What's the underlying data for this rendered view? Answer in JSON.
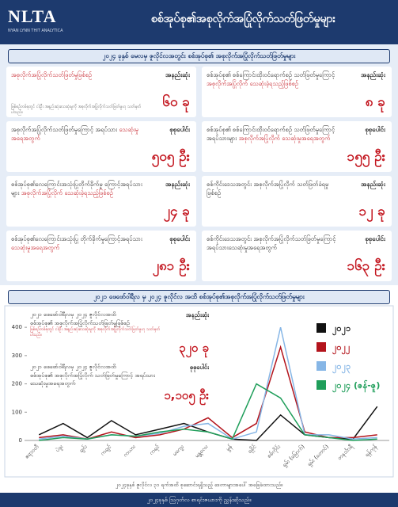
{
  "header": {
    "logo": "NLTA",
    "logo_sub": "NYAN LYNN THIT ANALYTICA",
    "title": "စစ်အုပ်စု၏အစုလိုက်အပြုံလိုက်သတ်ဖြတ်မှုများ"
  },
  "section1": {
    "title": "၂၀၂၄ ခုနှစ် မေလမှ ဇူလိုင်လအတွင်း စစ်အုပ်စု၏ အစုလိုက်အပြုံလိုက်သတ်ဖြတ်မှုများ",
    "cards": [
      {
        "label": "အနည်းဆုံး",
        "text": "",
        "highlight": "အစုလိုက်အပြုံလိုက်သတ်ဖြတ်မှုဖြစ်စဉ်",
        "value": "၆၀ ခု",
        "note": "ဖြစ်စဉ်တစ်ခုတွင် ငါးဦး အနည်းဆုံးသေဆုံးမှုကို အစုလိုက်အပြုံလိုက်သတ်ဖြတ်မှုဟု သတ်မှတ်ပါသည်။"
      },
      {
        "label": "အနည်းဆုံး",
        "text": "စစ်အုပ်စု၏ စစ်ကြောင်းထိုးဝင်ရောက်စဉ် သတ်ဖြတ်မှုကြောင့်",
        "highlight": "အစုလိုက်အပြုံလိုက် သေဆုံးခဲ့ရသည့်ဖြစ်စဉ်",
        "value": "၈ ခု"
      },
      {
        "label": "စုစုပေါင်း",
        "text": "အစုလိုက်အပြုံလိုက်သတ်ဖြတ်မှုကြောင့် အရပ်သား",
        "highlight": "သေဆုံးမှုအရေအတွက်",
        "value": "၅၀၅ ဦး"
      },
      {
        "label": "စုစုပေါင်း",
        "text": "စစ်အုပ်စု၏ စစ်ကြောင်းထိုးဝင်ရောက်စဉ် သတ်ဖြတ်မှုကြောင့် အရပ်သားများ",
        "highlight": "အစုလိုက်အပြုံလိုက် သေဆုံးမှုအရေအတွက်",
        "value": "၁၅၅ ဦး"
      },
      {
        "label": "အနည်းဆုံး",
        "text": "စစ်အုပ်စု၏လေကြောင်းအသုံးပြုတိုက်ခိုက်မှု ကြောင့်အရပ်သားများ",
        "highlight": "အစုလိုက်အပြုံလိုက် သေဆုံးခဲ့ရသည့်ဖြစ်စဉ်",
        "value": "၂၄ ခု"
      },
      {
        "label": "အနည်းဆုံး",
        "text": "စစ်ကိုင်းဒေသအတွင်း အစုလိုက်အပြုံလိုက် သတ်ဖြတ်ခံရမှုဖြစ်စဉ်",
        "highlight": "",
        "value": "၁၂ ခု"
      },
      {
        "label": "စုစုပေါင်း",
        "text": "စစ်အုပ်စု၏လေကြောင်းအသုံးပြု တိုက်ခိုက်မှုကြောင့်အရပ်သား",
        "highlight": "သေဆုံးမှုအရေအတွက်",
        "value": "၂၈၁ ဦး"
      },
      {
        "label": "စုစုပေါင်း",
        "text": "စစ်ကိုင်းဒေသအတွင်း အစုလိုက်အပြုံလိုက်သတ်ဖြတ်မှုကြောင့် အရပ်သားသေဆုံးမှုအရေအတွက်",
        "highlight": "",
        "value": "၁၆၃ ဦး"
      }
    ]
  },
  "section2": {
    "title": "၂၀၂၁ ဖေဖော်ဝါရီလ မှ ၂၀၂၄ ဇူလိုင်လ အထိ စစ်အုပ်စု၏အစုလိုက်အပြုံလိုက်သတ်ဖြတ်မှုများ",
    "boxes": [
      {
        "period": "၂၀၂၁ ဖေဖော်ဝါရီလမှ ၂၀၂၄ ဇူလိုင်လအထိ",
        "text": "စစ်အုပ်စု၏ အစုလိုက်အပြုံလိုက်သတ်ဖြတ်မှုဖြစ်စဉ်",
        "label": "အနည်းဆုံး",
        "value": "၃၂၀ ခု",
        "note": "ဖြစ်စဉ်တစ်ခုတွင် ငါးဦး အနည်းဆုံးသေဆုံးမှုကို အစုလိုက်အပြုံလိုက်သတ်ဖြတ်မှုဟု သတ်မှတ်ပါသည်။"
      },
      {
        "period": "၂၀၂၁ ဖေဖော်ဝါရီလမှ ၂၀၂၄ ဇူလိုင်လအထိ",
        "text": "စစ်အုပ်စု၏ အစုလိုက်အပြုံလိုက် သတ်ဖြတ်မှုကြောင့် အရပ်သားသေဆုံးမှုအရေအတွက်",
        "label": "စုစုပေါင်း",
        "value": "၁,၁၀၅ ဦး"
      }
    ]
  },
  "chart_data": {
    "type": "line",
    "categories": [
      "ဧရာဝတီ",
      "ပဲခူး",
      "ချင်း",
      "ကချင်",
      "ကယား",
      "ကရင်",
      "မကွေး",
      "မန္တလေး",
      "မွန်",
      "ရခိုင်",
      "စစ်ကိုင်း",
      "ရှမ်း (မြောက်)",
      "ရှမ်း (တောင်)",
      "တနင်္သာရီ",
      "ရန်ကုန်"
    ],
    "series": [
      {
        "name": "၂၀၂၁",
        "color": "#111111",
        "values": [
          20,
          60,
          10,
          70,
          20,
          40,
          60,
          30,
          5,
          0,
          90,
          20,
          10,
          5,
          120
        ]
      },
      {
        "name": "၂၀၂၂",
        "color": "#b3141c",
        "values": [
          10,
          20,
          5,
          30,
          10,
          20,
          40,
          80,
          10,
          60,
          330,
          30,
          10,
          10,
          20
        ]
      },
      {
        "name": "၂၀၂၃",
        "color": "#86b6e6",
        "values": [
          5,
          15,
          5,
          20,
          15,
          25,
          50,
          60,
          5,
          30,
          400,
          20,
          20,
          5,
          10
        ]
      },
      {
        "name": "၂၀၂၄ (ဇန်-ဇူ)",
        "color": "#1f9e5a",
        "values": [
          0,
          10,
          5,
          20,
          15,
          30,
          40,
          30,
          5,
          200,
          150,
          20,
          10,
          0,
          5
        ]
      }
    ],
    "ylim": [
      0,
      420
    ],
    "yticks": [
      0,
      100,
      200,
      300,
      400
    ],
    "grid": false
  },
  "footer": {
    "note": "၂၀၂၄ခုနှစ် ဇူလိုင်လ ၃၁ ရက်အထိ စုဆောင်းရရှိသည့် ဒေတာများအပေါ် အခြေခံထားသည်။",
    "source": "၂၀၂၄ခုနှစ် ဩဂုတ်လ စာရင်းဇယားကို ညွှန်းဆိုသည်။"
  }
}
